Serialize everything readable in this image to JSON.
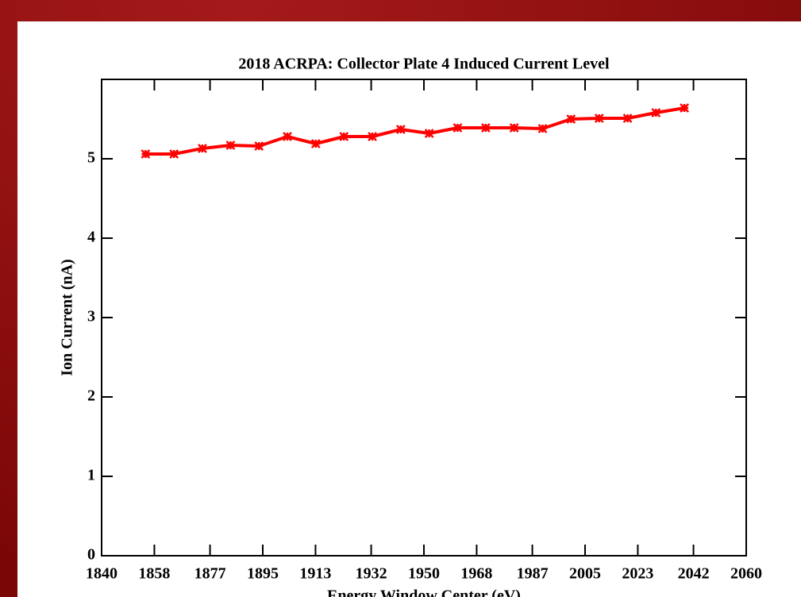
{
  "chart_data": {
    "type": "line",
    "title": "2018 ACRPA: Collector Plate 4 Induced Current Level",
    "x_label": "Energy Window Center (eV)",
    "y_label": "Ion Current (nA)",
    "x": [
      1855,
      1864.7,
      1874.4,
      1884,
      1893.7,
      1903.4,
      1913.1,
      1922.7,
      1932.4,
      1942.1,
      1951.8,
      1961.5,
      1971.1,
      1980.8,
      1990.5,
      2000.2,
      2009.8,
      2019.5,
      2029.2,
      2038.9
    ],
    "series": [
      {
        "name": "Collector Plate 4",
        "color": "#ff0000",
        "values": [
          5.06,
          5.06,
          5.13,
          5.17,
          5.16,
          5.28,
          5.19,
          5.28,
          5.28,
          5.37,
          5.32,
          5.39,
          5.39,
          5.39,
          5.38,
          5.5,
          5.51,
          5.51,
          5.58,
          5.64
        ]
      }
    ],
    "xlim": [
      1840,
      2060
    ],
    "xticks": [
      1840,
      1858,
      1877,
      1895,
      1913,
      1932,
      1950,
      1968,
      1987,
      2005,
      2023,
      2042,
      2060
    ],
    "ylim": [
      0,
      6
    ],
    "yticks": [
      0,
      1,
      2,
      3,
      4,
      5
    ]
  }
}
